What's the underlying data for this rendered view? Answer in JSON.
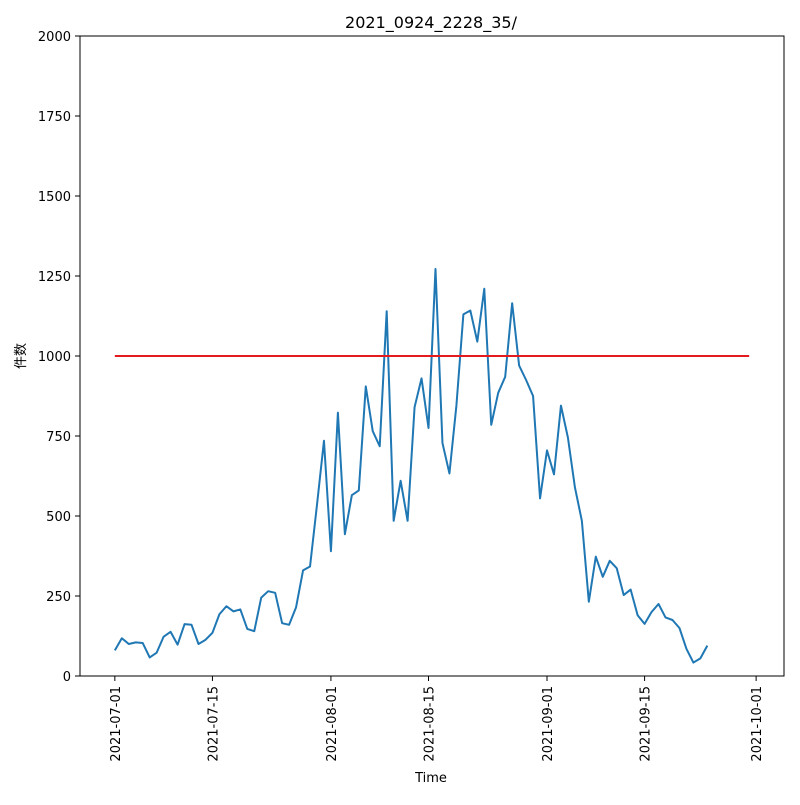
{
  "chart_data": {
    "type": "line",
    "title": "2021_0924_2228_35/",
    "xlabel": "Time",
    "ylabel": "件数",
    "ylim": [
      0,
      2000
    ],
    "yticks": [
      0,
      250,
      500,
      750,
      1000,
      1250,
      1500,
      1750,
      2000
    ],
    "ytick_labels": [
      "0",
      "250",
      "500",
      "750",
      "1000",
      "1250",
      "1500",
      "1750",
      "2000"
    ],
    "xlim": [
      "2021-06-26",
      "2021-10-05"
    ],
    "xticks": [
      "2021-07-01",
      "2021-07-15",
      "2021-08-01",
      "2021-08-15",
      "2021-09-01",
      "2021-09-15",
      "2021-10-01"
    ],
    "grid": false,
    "series": [
      {
        "color": "#1f77b4",
        "x": [
          "2021-07-01",
          "2021-07-02",
          "2021-07-03",
          "2021-07-04",
          "2021-07-05",
          "2021-07-06",
          "2021-07-07",
          "2021-07-08",
          "2021-07-09",
          "2021-07-10",
          "2021-07-11",
          "2021-07-12",
          "2021-07-13",
          "2021-07-14",
          "2021-07-15",
          "2021-07-16",
          "2021-07-17",
          "2021-07-18",
          "2021-07-19",
          "2021-07-20",
          "2021-07-21",
          "2021-07-22",
          "2021-07-23",
          "2021-07-24",
          "2021-07-25",
          "2021-07-26",
          "2021-07-27",
          "2021-07-28",
          "2021-07-29",
          "2021-07-30",
          "2021-07-31",
          "2021-08-01",
          "2021-08-02",
          "2021-08-03",
          "2021-08-04",
          "2021-08-05",
          "2021-08-06",
          "2021-08-07",
          "2021-08-08",
          "2021-08-09",
          "2021-08-10",
          "2021-08-11",
          "2021-08-12",
          "2021-08-13",
          "2021-08-14",
          "2021-08-15",
          "2021-08-16",
          "2021-08-17",
          "2021-08-18",
          "2021-08-19",
          "2021-08-20",
          "2021-08-21",
          "2021-08-22",
          "2021-08-23",
          "2021-08-24",
          "2021-08-25",
          "2021-08-26",
          "2021-08-27",
          "2021-08-28",
          "2021-08-29",
          "2021-08-30",
          "2021-08-31",
          "2021-09-01",
          "2021-09-02",
          "2021-09-03",
          "2021-09-04",
          "2021-09-05",
          "2021-09-06",
          "2021-09-07",
          "2021-09-08",
          "2021-09-09",
          "2021-09-10",
          "2021-09-11",
          "2021-09-12",
          "2021-09-13",
          "2021-09-14",
          "2021-09-15",
          "2021-09-16",
          "2021-09-17",
          "2021-09-18",
          "2021-09-19",
          "2021-09-20",
          "2021-09-21",
          "2021-09-22",
          "2021-09-23",
          "2021-09-24"
        ],
        "y": [
          80,
          118,
          100,
          105,
          103,
          58,
          73,
          123,
          138,
          98,
          162,
          160,
          100,
          113,
          135,
          193,
          218,
          202,
          208,
          147,
          140,
          245,
          265,
          260,
          165,
          160,
          215,
          330,
          342,
          535,
          735,
          390,
          823,
          443,
          565,
          580,
          905,
          765,
          718,
          1140,
          485,
          610,
          485,
          840,
          930,
          775,
          1272,
          728,
          633,
          845,
          1130,
          1142,
          1045,
          1210,
          785,
          885,
          935,
          1165,
          970,
          925,
          875,
          555,
          705,
          630,
          845,
          745,
          590,
          485,
          232,
          373,
          310,
          360,
          337,
          253,
          270,
          190,
          163,
          200,
          225,
          183,
          175,
          150,
          85,
          42,
          55,
          95
        ]
      }
    ],
    "reference_line": {
      "color": "#e41a1c",
      "y": 1000,
      "x_start": "2021-07-01",
      "x_end": "2021-09-30"
    }
  }
}
